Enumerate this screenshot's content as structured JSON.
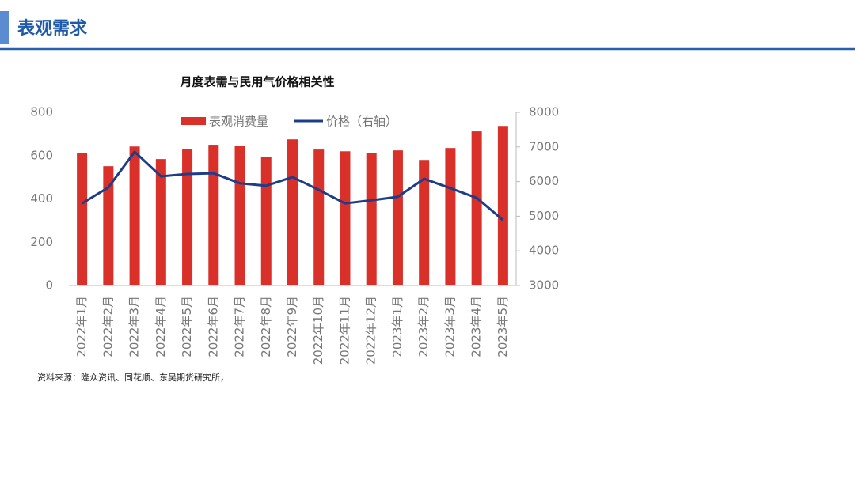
{
  "header": {
    "title": "表观需求"
  },
  "chart_data": {
    "type": "bar-line",
    "title": "月度表需与民用气价格相关性",
    "categories": [
      "2022年1月",
      "2022年2月",
      "2022年3月",
      "2022年4月",
      "2022年5月",
      "2022年6月",
      "2022年7月",
      "2022年8月",
      "2022年9月",
      "2022年10月",
      "2022年11月",
      "2022年12月",
      "2023年1月",
      "2023年2月",
      "2023年3月",
      "2023年4月",
      "2023年5月"
    ],
    "series": [
      {
        "name": "表观消费量",
        "type": "bar",
        "color": "#d9302a",
        "values": [
          610,
          551,
          642,
          584,
          631,
          650,
          646,
          595,
          675,
          628,
          620,
          613,
          624,
          580,
          635,
          712,
          737
        ]
      },
      {
        "name": "价格（右轴）",
        "type": "line",
        "axis": "y2",
        "color": "#1f3c88",
        "values": [
          5370,
          5830,
          6860,
          6150,
          6220,
          6240,
          5950,
          5880,
          6130,
          5760,
          5370,
          5460,
          5560,
          6080,
          5810,
          5530,
          4890
        ]
      }
    ],
    "ylim": [
      0,
      800
    ],
    "yticks": [
      0,
      200,
      400,
      600,
      800
    ],
    "y2lim": [
      3000,
      8000
    ],
    "y2ticks": [
      3000,
      4000,
      5000,
      6000,
      7000,
      8000
    ],
    "legend": "top",
    "grid": false
  },
  "source": "资料来源：隆众资讯、同花顺、东吴期货研究所，"
}
